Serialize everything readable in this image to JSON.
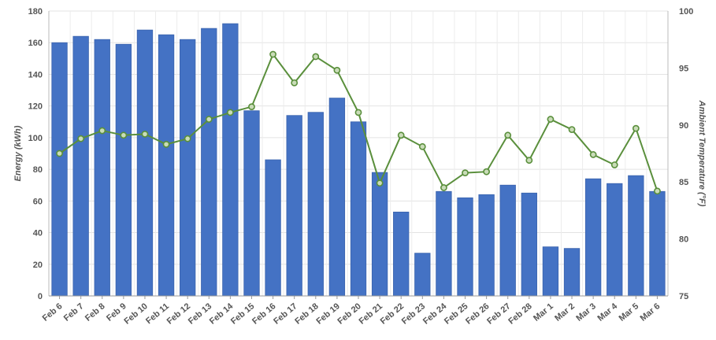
{
  "chart_data": {
    "type": "bar",
    "categories": [
      "Feb 6",
      "Feb 7",
      "Feb 8",
      "Feb 9",
      "Feb 10",
      "Feb 11",
      "Feb 12",
      "Feb 13",
      "Feb 14",
      "Feb 15",
      "Feb 16",
      "Feb 17",
      "Feb 18",
      "Feb 19",
      "Feb 20",
      "Feb 21",
      "Feb 22",
      "Feb 23",
      "Feb 24",
      "Feb 25",
      "Feb 26",
      "Feb 27",
      "Feb 28",
      "Mar 1",
      "Mar 2",
      "Mar 3",
      "Mar 4",
      "Mar 5",
      "Mar 6"
    ],
    "series": [
      {
        "kind": "bar",
        "axis": "left",
        "color": "#4472c4",
        "values": [
          160,
          164,
          162,
          159,
          168,
          165,
          162,
          169,
          172,
          117,
          86,
          114,
          116,
          125,
          110,
          78,
          53,
          27,
          66,
          62,
          64,
          70,
          65,
          31,
          30,
          74,
          71,
          76,
          66
        ]
      },
      {
        "kind": "line",
        "axis": "right",
        "color": "#5a8f3c",
        "values": [
          87.5,
          88.8,
          89.5,
          89.1,
          89.2,
          88.3,
          88.8,
          90.5,
          91.1,
          91.6,
          96.2,
          93.7,
          96,
          94.8,
          91.1,
          84.9,
          89.1,
          88.1,
          84.5,
          85.8,
          85.9,
          89.1,
          86.9,
          90.5,
          89.6,
          87.4,
          86.5,
          89.7,
          84.2
        ]
      }
    ],
    "ylabel": "Energy (kWh)",
    "y2label": "Ambient Temperature (°F)",
    "ylim": [
      0,
      180
    ],
    "y2lim": [
      75,
      100
    ],
    "yticks": [
      "0",
      "20",
      "40",
      "60",
      "80",
      "100",
      "120",
      "140",
      "160",
      "180"
    ],
    "y2ticks": [
      "75",
      "80",
      "85",
      "90",
      "95",
      "100"
    ],
    "grid": true,
    "legend": "none"
  }
}
